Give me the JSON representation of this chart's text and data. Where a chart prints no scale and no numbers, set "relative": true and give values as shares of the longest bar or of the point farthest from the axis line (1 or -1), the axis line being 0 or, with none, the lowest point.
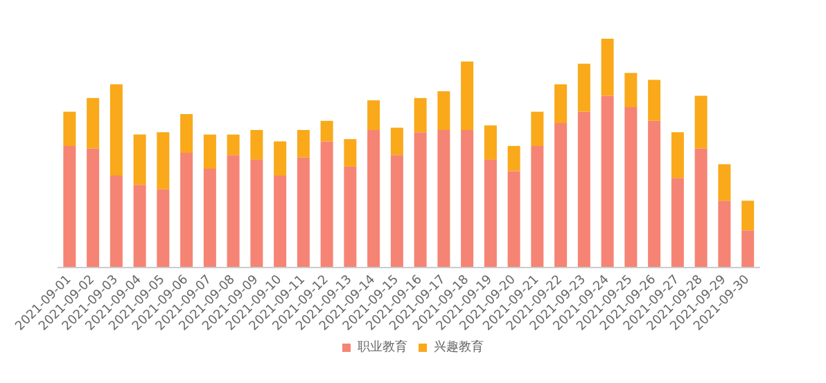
{
  "chart_data": {
    "type": "bar",
    "stacked": true,
    "relative": true,
    "legend": "bottom",
    "categories": [
      "2021-09-01",
      "2021-09-02",
      "2021-09-03",
      "2021-09-04",
      "2021-09-05",
      "2021-09-06",
      "2021-09-07",
      "2021-09-08",
      "2021-09-09",
      "2021-09-10",
      "2021-09-11",
      "2021-09-12",
      "2021-09-13",
      "2021-09-14",
      "2021-09-15",
      "2021-09-16",
      "2021-09-17",
      "2021-09-18",
      "2021-09-19",
      "2021-09-20",
      "2021-09-21",
      "2021-09-22",
      "2021-09-23",
      "2021-09-24",
      "2021-09-25",
      "2021-09-26",
      "2021-09-27",
      "2021-09-28",
      "2021-09-29",
      "2021-09-30"
    ],
    "series": [
      {
        "name": "职业教育",
        "color": "#f58474",
        "values": [
          0.53,
          0.52,
          0.4,
          0.36,
          0.34,
          0.5,
          0.43,
          0.49,
          0.47,
          0.4,
          0.48,
          0.55,
          0.44,
          0.6,
          0.49,
          0.59,
          0.6,
          0.6,
          0.47,
          0.42,
          0.53,
          0.63,
          0.68,
          0.75,
          0.7,
          0.64,
          0.39,
          0.52,
          0.29,
          0.16
        ]
      },
      {
        "name": "兴趣教育",
        "color": "#f9a91a",
        "values": [
          0.15,
          0.22,
          0.4,
          0.22,
          0.25,
          0.17,
          0.15,
          0.09,
          0.13,
          0.15,
          0.12,
          0.09,
          0.12,
          0.13,
          0.12,
          0.15,
          0.17,
          0.3,
          0.15,
          0.11,
          0.15,
          0.17,
          0.21,
          0.25,
          0.15,
          0.18,
          0.2,
          0.23,
          0.16,
          0.13
        ]
      }
    ]
  }
}
